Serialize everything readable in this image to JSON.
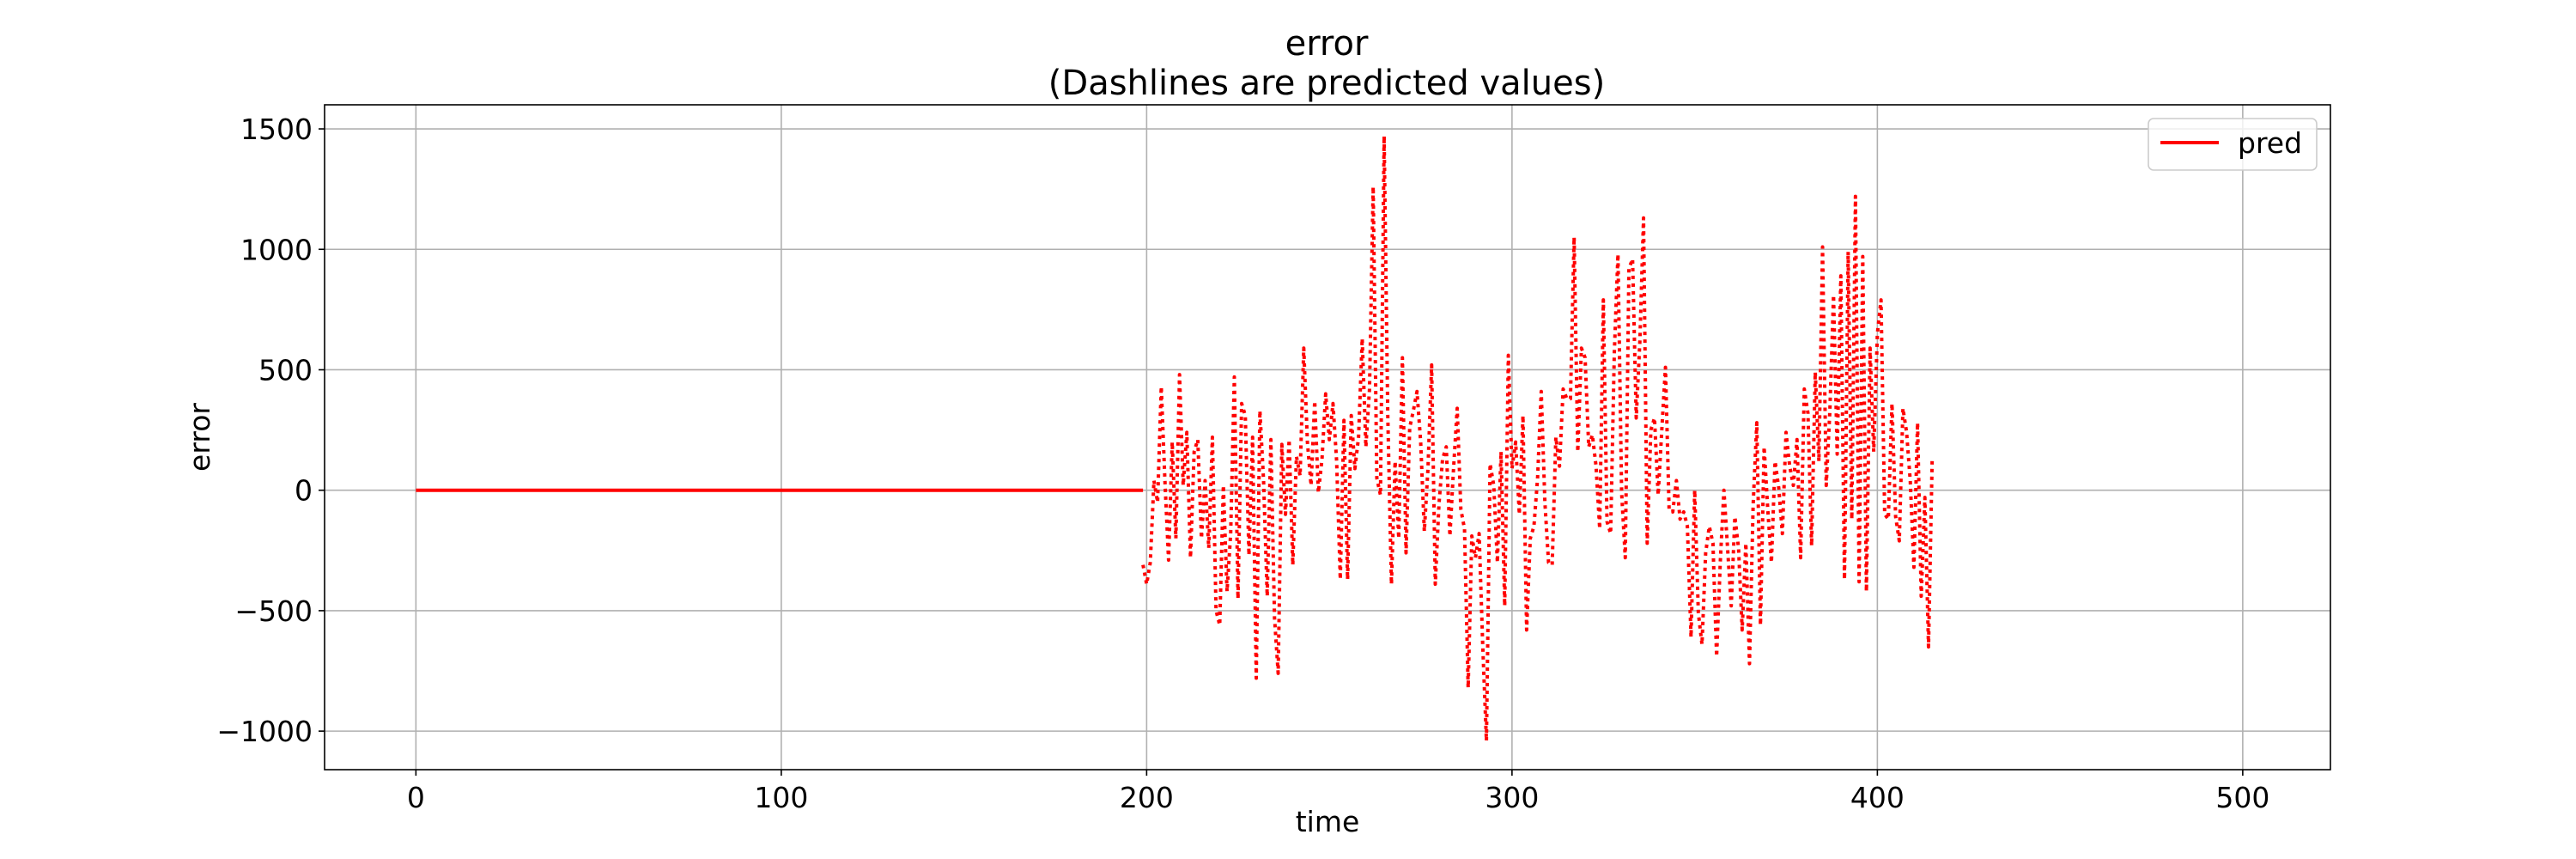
{
  "chart_data": {
    "type": "line",
    "title": "error",
    "subtitle": "(Dashlines are predicted values)",
    "xlabel": "time",
    "ylabel": "error",
    "xlim": [
      -25,
      524
    ],
    "ylim": [
      -1160,
      1600
    ],
    "x_ticks": [
      0,
      100,
      200,
      300,
      400,
      500
    ],
    "x_tick_labels": [
      "0",
      "100",
      "200",
      "300",
      "400",
      "500"
    ],
    "y_ticks": [
      -1000,
      -500,
      0,
      500,
      1000,
      1500
    ],
    "y_tick_labels": [
      "−1000",
      "−500",
      "0",
      "500",
      "1000",
      "1500"
    ],
    "grid": true,
    "legend": {
      "position": "top-right",
      "entries": [
        "pred"
      ]
    },
    "line_color": "#ff0000",
    "series": [
      {
        "name": "pred",
        "style": "solid",
        "x": [
          0,
          199
        ],
        "values": [
          0,
          0
        ]
      },
      {
        "style": "dotted",
        "x_start": 199,
        "values": [
          -310,
          -390,
          -300,
          40,
          -50,
          430,
          40,
          -290,
          200,
          -200,
          480,
          20,
          240,
          -280,
          160,
          210,
          -200,
          40,
          -240,
          220,
          -500,
          -560,
          20,
          -420,
          -180,
          470,
          -450,
          360,
          310,
          -270,
          220,
          -780,
          330,
          40,
          -440,
          210,
          -530,
          -760,
          190,
          -100,
          210,
          -310,
          140,
          60,
          590,
          200,
          20,
          370,
          -10,
          130,
          400,
          210,
          360,
          120,
          -370,
          290,
          -370,
          310,
          90,
          220,
          630,
          180,
          420,
          1260,
          50,
          -20,
          1470,
          310,
          -390,
          120,
          -200,
          550,
          -260,
          260,
          330,
          410,
          200,
          -170,
          90,
          520,
          -390,
          -60,
          130,
          180,
          -190,
          90,
          340,
          -80,
          -160,
          -820,
          -190,
          -280,
          -180,
          -650,
          -1040,
          110,
          20,
          -300,
          160,
          -480,
          560,
          90,
          200,
          -100,
          310,
          -580,
          -200,
          -150,
          50,
          410,
          -50,
          -300,
          -310,
          220,
          100,
          420,
          380,
          380,
          1050,
          160,
          590,
          550,
          180,
          230,
          100,
          -160,
          790,
          -130,
          -180,
          570,
          980,
          -10,
          -280,
          920,
          960,
          300,
          620,
          1130,
          -220,
          250,
          300,
          -20,
          250,
          510,
          -80,
          -90,
          40,
          -120,
          -90,
          -150,
          -610,
          0,
          -510,
          -640,
          -260,
          -150,
          -220,
          -690,
          -300,
          0,
          -240,
          -480,
          -110,
          -240,
          -580,
          -220,
          -720,
          -60,
          280,
          -560,
          180,
          -80,
          -300,
          120,
          10,
          -180,
          240,
          100,
          20,
          210,
          -280,
          420,
          320,
          -230,
          490,
          120,
          1010,
          20,
          330,
          810,
          150,
          890,
          -370,
          990,
          -120,
          1220,
          -380,
          970,
          -420,
          590,
          160,
          650,
          790,
          -100,
          -120,
          360,
          -110,
          -210,
          340,
          240,
          40,
          -320,
          280,
          -440,
          -30,
          -650,
          130
        ]
      }
    ]
  }
}
